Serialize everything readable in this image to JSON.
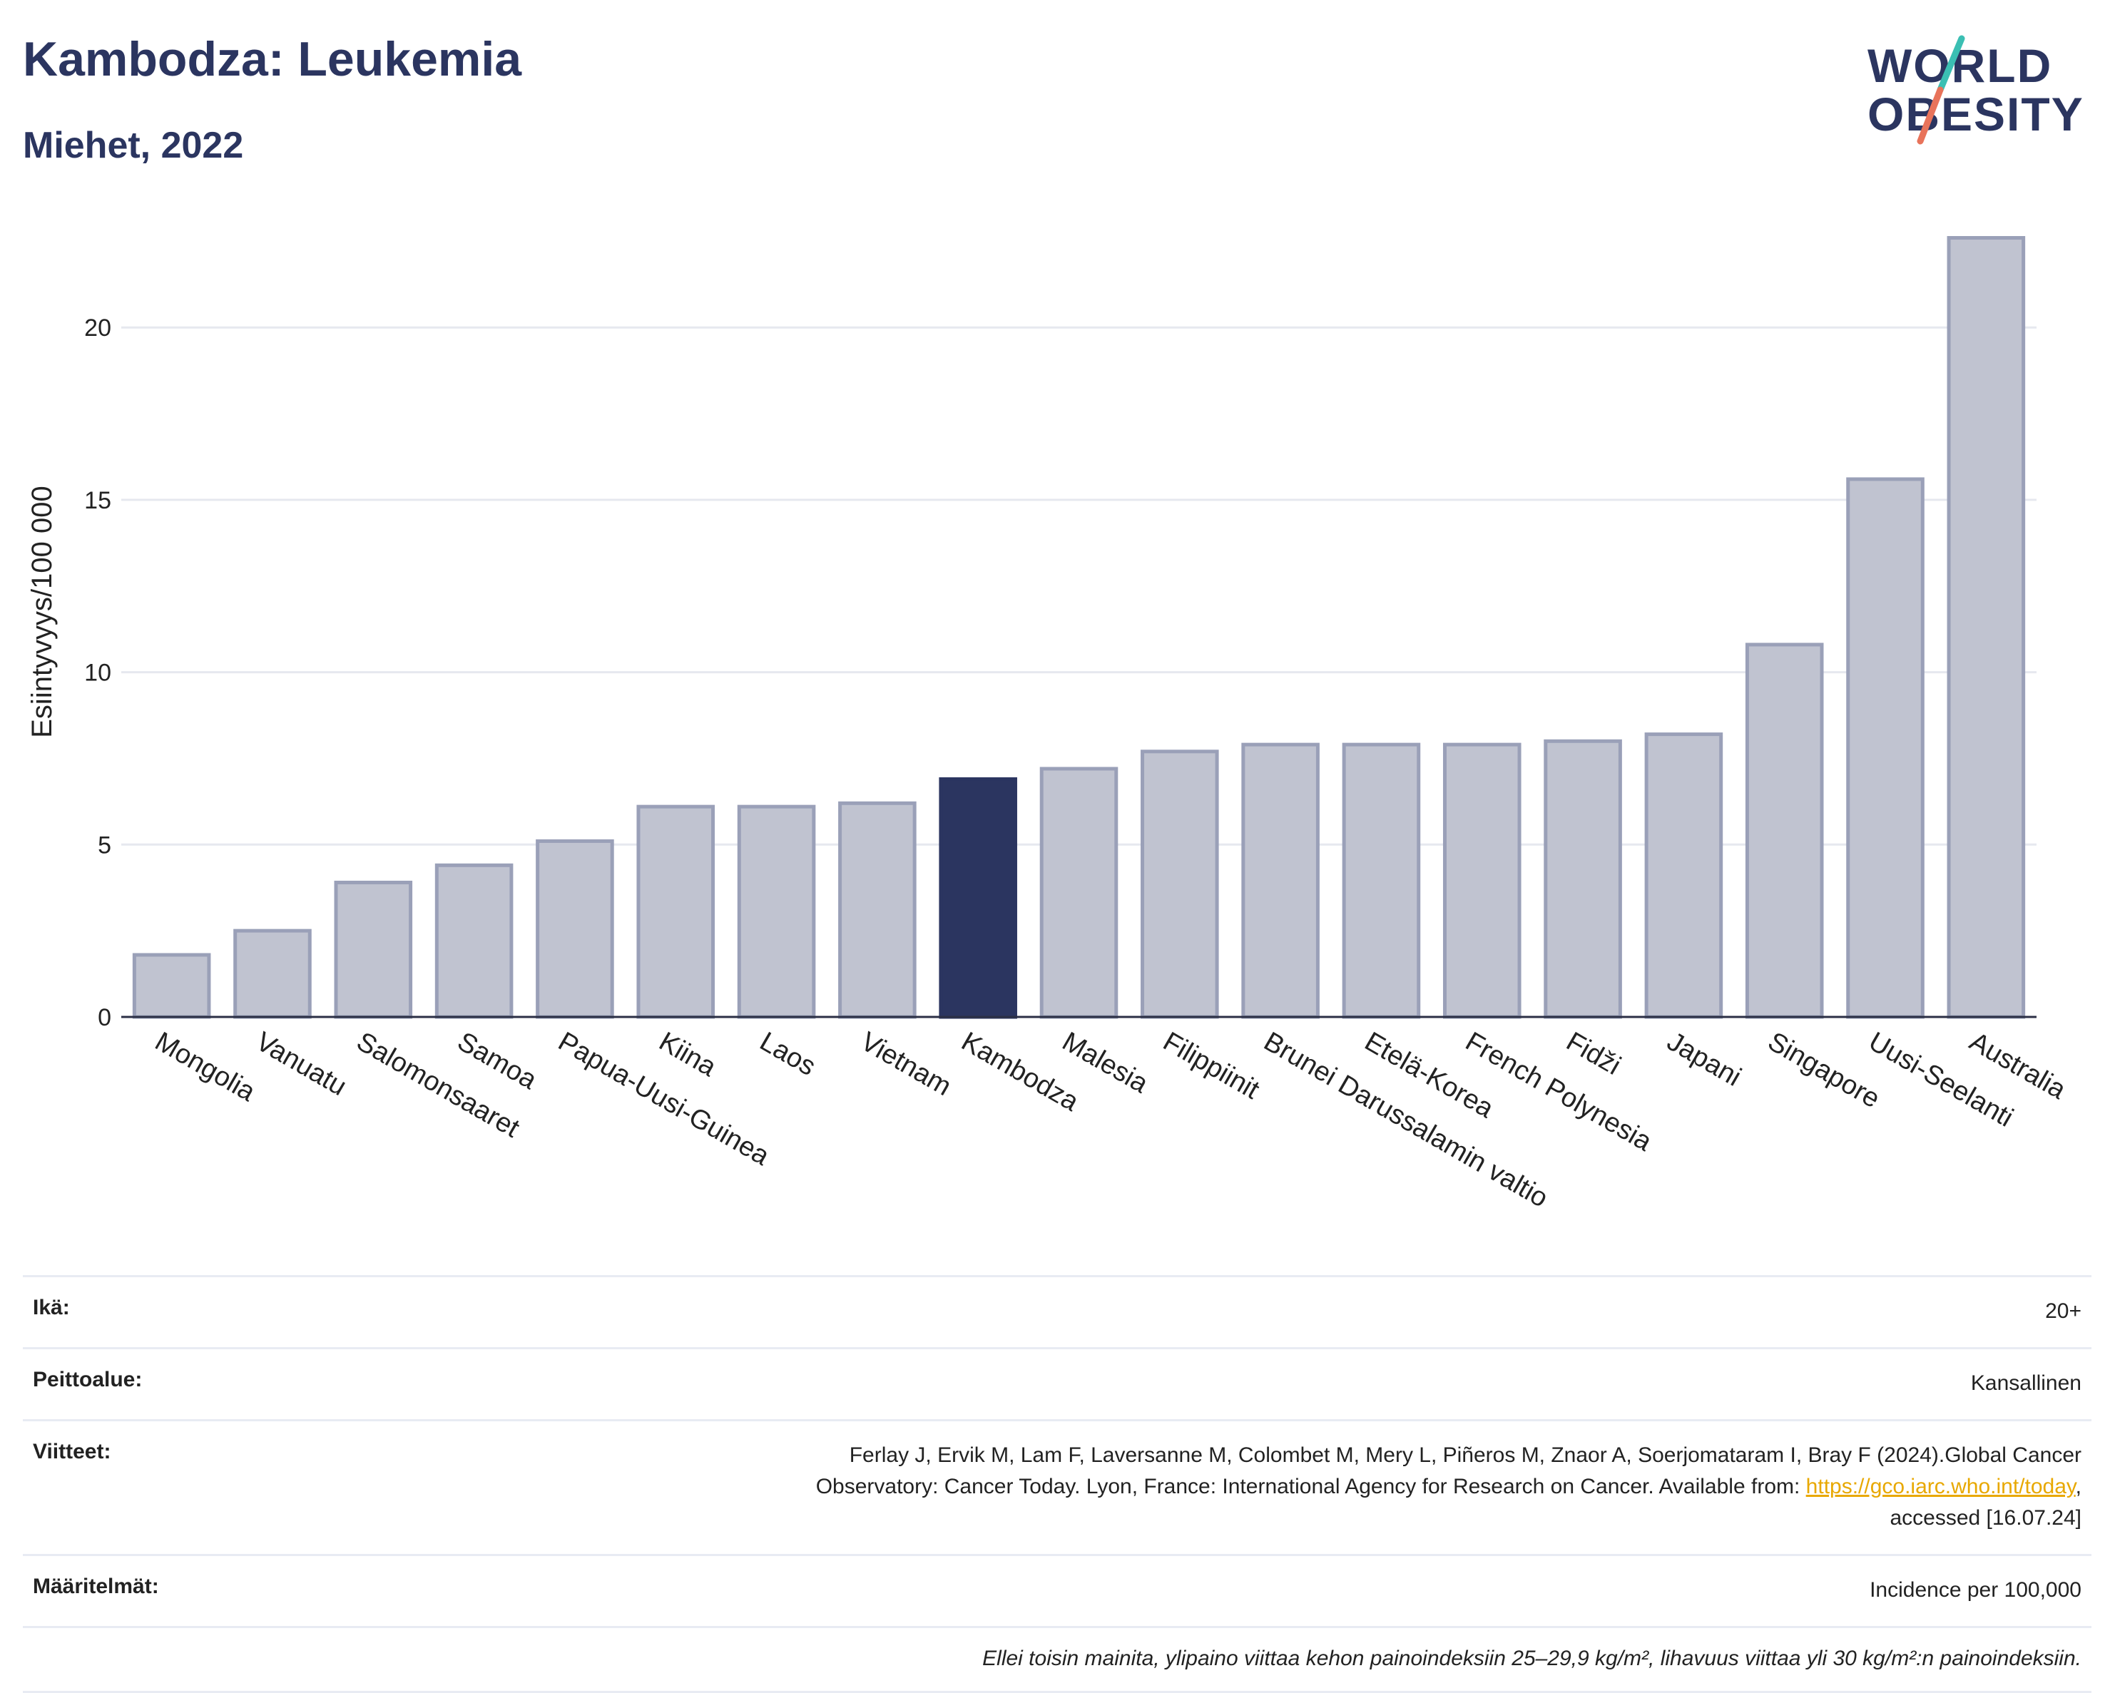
{
  "header": {
    "title": "Kambodza: Leukemia",
    "subtitle": "Miehet, 2022"
  },
  "logo": {
    "line1": "WORLD",
    "line2": "OBESITY",
    "colors": {
      "text": "#2b3560",
      "slash_top": "#3bbfb3",
      "slash_bottom": "#e8735a"
    }
  },
  "chart_data": {
    "type": "bar",
    "ylabel": "Esiintyvyys/100 000",
    "xlabel": "",
    "ylim": [
      0,
      23.5
    ],
    "yticks": [
      0,
      5,
      10,
      15,
      20
    ],
    "grid": true,
    "highlight": "Kambodza",
    "colors": {
      "bar": "#c0c3d0",
      "bar_edge": "#9aa0b8",
      "highlight": "#2b3560"
    },
    "categories": [
      "Mongolia",
      "Vanuatu",
      "Salomonsaaret",
      "Samoa",
      "Papua-Uusi-Guinea",
      "Kiina",
      "Laos",
      "Vietnam",
      "Kambodza",
      "Malesia",
      "Filippiinit",
      "Brunei Darussalamin valtio",
      "Etelä-Korea",
      "French Polynesia",
      "Fidži",
      "Japani",
      "Singapore",
      "Uusi-Seelanti",
      "Australia"
    ],
    "values": [
      1.8,
      2.5,
      3.9,
      4.4,
      5.1,
      6.1,
      6.1,
      6.2,
      6.9,
      7.2,
      7.7,
      7.9,
      7.9,
      7.9,
      8.0,
      8.2,
      10.8,
      15.6,
      22.6
    ]
  },
  "meta": {
    "age": {
      "label": "Ikä:",
      "value": "20+"
    },
    "coverage": {
      "label": "Peittoalue:",
      "value": "Kansallinen"
    },
    "references": {
      "label": "Viitteet:",
      "line1": "Ferlay J, Ervik M, Lam F, Laversanne M, Colombet M, Mery L, Piñeros M, Znaor A, Soerjomataram I, Bray F (2024).Global Cancer",
      "line2_pre": "Observatory: Cancer Today. Lyon, France: International Agency for Research on Cancer. Available from: ",
      "link": "https://gco.iarc.who.int/today",
      "line2_post": ",",
      "line3": "accessed [16.07.24]"
    },
    "definitions": {
      "label": "Määritelmät:",
      "value": "Incidence per 100,000"
    },
    "note": "Ellei toisin mainita, ylipaino viittaa kehon painoindeksiin 25–29,9 kg/m², lihavuus viittaa yli 30 kg/m²:n painoindeksiin."
  }
}
